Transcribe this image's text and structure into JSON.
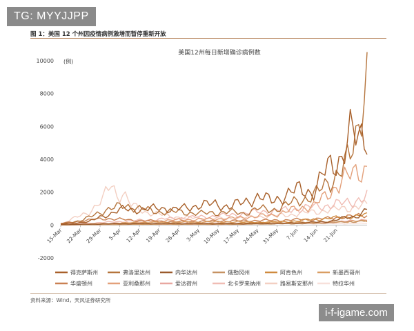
{
  "watermarks": {
    "top": "TG: MYYJJPP",
    "bottom": "i-f-igame.com"
  },
  "figure_caption": "图 1：美国 12 个州因疫情病例激增而暂停重新开放",
  "source": "资料来源：Wind，天风证券研究所",
  "colors": {
    "得克萨斯州": "#a8602a",
    "弗洛里达州": "#b5743c",
    "内华达州": "#9a5a2c",
    "俄勒冈州": "#c69262",
    "阿肯色州": "#cf8a3e",
    "新墨西哥州": "#d99e62",
    "华盛顿州": "#c98052",
    "亚利桑那州": "#e3a07a",
    "爱达荷州": "#e8a7a0",
    "北卡罗来纳州": "#f0bcb4",
    "路易斯安那州": "#f3cfc2",
    "特拉华州": "#f7e0da"
  },
  "chart_data": {
    "type": "line",
    "title": "美国12州每日新增确诊病例数",
    "ylabel": "(例)",
    "xlabel": "",
    "ylim": [
      -2000,
      10000
    ],
    "yticks": [
      -2000,
      0,
      2000,
      4000,
      6000,
      8000,
      10000
    ],
    "x_start": "2020-03-15",
    "days": 110,
    "x_tick_labels": [
      "15-Mar",
      "22-Mar",
      "29-Mar",
      "5-Apr",
      "12-Apr",
      "19-Apr",
      "26-Apr",
      "3-May",
      "10-May",
      "17-May",
      "24-May",
      "31-May",
      "7-Jun",
      "14-Jun",
      "21-Jun"
    ],
    "legend_position": "bottom",
    "series": [
      {
        "name": "得克萨斯州",
        "keypoints": [
          [
            0,
            50
          ],
          [
            10,
            200
          ],
          [
            14,
            500
          ],
          [
            18,
            700
          ],
          [
            23,
            1000
          ],
          [
            30,
            900
          ],
          [
            35,
            1100
          ],
          [
            40,
            900
          ],
          [
            45,
            1100
          ],
          [
            50,
            1200
          ],
          [
            55,
            1300
          ],
          [
            60,
            1100
          ],
          [
            65,
            1400
          ],
          [
            70,
            1700
          ],
          [
            75,
            1500
          ],
          [
            80,
            1800
          ],
          [
            85,
            2200
          ],
          [
            90,
            2000
          ],
          [
            95,
            3500
          ],
          [
            100,
            4200
          ],
          [
            103,
            5500
          ],
          [
            106,
            5200
          ],
          [
            108,
            5700
          ],
          [
            109,
            5800
          ]
        ]
      },
      {
        "name": "弗洛里达州",
        "keypoints": [
          [
            0,
            50
          ],
          [
            8,
            300
          ],
          [
            14,
            800
          ],
          [
            18,
            1000
          ],
          [
            23,
            1200
          ],
          [
            28,
            1000
          ],
          [
            35,
            800
          ],
          [
            42,
            800
          ],
          [
            50,
            700
          ],
          [
            55,
            750
          ],
          [
            60,
            800
          ],
          [
            65,
            700
          ],
          [
            70,
            1000
          ],
          [
            75,
            900
          ],
          [
            80,
            1200
          ],
          [
            85,
            1500
          ],
          [
            90,
            1800
          ],
          [
            95,
            2500
          ],
          [
            100,
            3500
          ],
          [
            103,
            4000
          ],
          [
            106,
            6000
          ],
          [
            108,
            9000
          ],
          [
            109,
            9500
          ]
        ]
      },
      {
        "name": "内华达州",
        "keypoints": [
          [
            0,
            20
          ],
          [
            20,
            80
          ],
          [
            40,
            100
          ],
          [
            60,
            80
          ],
          [
            80,
            100
          ],
          [
            95,
            200
          ],
          [
            100,
            400
          ],
          [
            105,
            500
          ],
          [
            109,
            1000
          ]
        ]
      },
      {
        "name": "俄勒冈州",
        "keypoints": [
          [
            0,
            10
          ],
          [
            30,
            50
          ],
          [
            60,
            40
          ],
          [
            90,
            100
          ],
          [
            109,
            250
          ]
        ]
      },
      {
        "name": "阿肯色州",
        "keypoints": [
          [
            0,
            10
          ],
          [
            20,
            40
          ],
          [
            40,
            60
          ],
          [
            60,
            100
          ],
          [
            80,
            200
          ],
          [
            95,
            400
          ],
          [
            109,
            600
          ]
        ]
      },
      {
        "name": "新墨西哥州",
        "keypoints": [
          [
            0,
            10
          ],
          [
            30,
            150
          ],
          [
            60,
            200
          ],
          [
            80,
            150
          ],
          [
            100,
            200
          ],
          [
            109,
            250
          ]
        ]
      },
      {
        "name": "华盛顿州",
        "keypoints": [
          [
            0,
            100
          ],
          [
            10,
            300
          ],
          [
            16,
            400
          ],
          [
            25,
            300
          ],
          [
            40,
            200
          ],
          [
            60,
            250
          ],
          [
            80,
            300
          ],
          [
            95,
            400
          ],
          [
            100,
            500
          ],
          [
            109,
            600
          ]
        ]
      },
      {
        "name": "亚利桑那州",
        "keypoints": [
          [
            0,
            20
          ],
          [
            20,
            100
          ],
          [
            40,
            300
          ],
          [
            60,
            400
          ],
          [
            75,
            600
          ],
          [
            82,
            900
          ],
          [
            90,
            1200
          ],
          [
            95,
            1800
          ],
          [
            100,
            2800
          ],
          [
            104,
            3000
          ],
          [
            108,
            3500
          ],
          [
            109,
            3600
          ]
        ]
      },
      {
        "name": "爱达荷州",
        "keypoints": [
          [
            0,
            10
          ],
          [
            30,
            50
          ],
          [
            60,
            40
          ],
          [
            90,
            150
          ],
          [
            100,
            200
          ],
          [
            109,
            350
          ]
        ]
      },
      {
        "name": "北卡罗来纳州",
        "keypoints": [
          [
            0,
            30
          ],
          [
            20,
            200
          ],
          [
            40,
            400
          ],
          [
            60,
            600
          ],
          [
            70,
            800
          ],
          [
            80,
            900
          ],
          [
            90,
            1100
          ],
          [
            100,
            1300
          ],
          [
            105,
            1500
          ],
          [
            109,
            1700
          ]
        ]
      },
      {
        "name": "路易斯安那州",
        "keypoints": [
          [
            0,
            50
          ],
          [
            10,
            800
          ],
          [
            15,
            1500
          ],
          [
            18,
            2600
          ],
          [
            20,
            1800
          ],
          [
            22,
            2000
          ],
          [
            25,
            1200
          ],
          [
            30,
            800
          ],
          [
            40,
            500
          ],
          [
            50,
            400
          ],
          [
            60,
            400
          ],
          [
            70,
            500
          ],
          [
            80,
            600
          ],
          [
            90,
            800
          ],
          [
            100,
            1000
          ],
          [
            109,
            1200
          ]
        ]
      },
      {
        "name": "特拉华州",
        "keypoints": [
          [
            0,
            5
          ],
          [
            30,
            150
          ],
          [
            60,
            120
          ],
          [
            90,
            80
          ],
          [
            109,
            100
          ]
        ]
      }
    ]
  }
}
